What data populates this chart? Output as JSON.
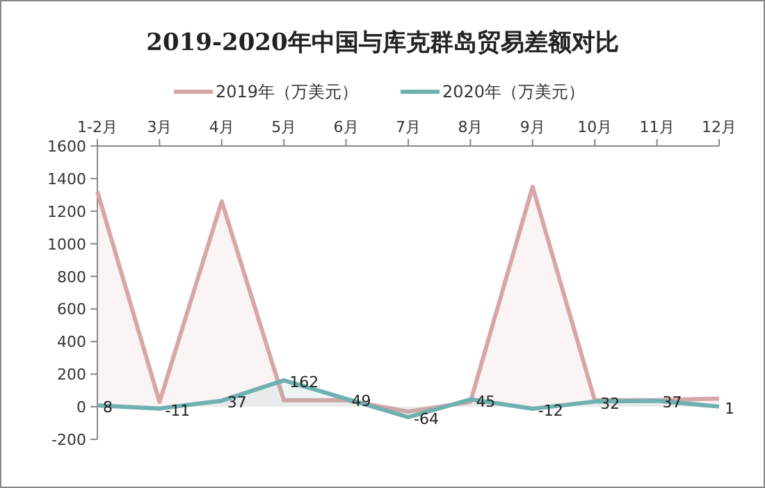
{
  "chart_data": {
    "type": "area",
    "title": "2019-2020年中国与库克群岛贸易差额对比",
    "categories": [
      "1-2月",
      "3月",
      "4月",
      "5月",
      "6月",
      "7月",
      "8月",
      "9月",
      "10月",
      "11月",
      "12月"
    ],
    "series": [
      {
        "name": "2019年（万美元）",
        "color": "#d9a6a6",
        "values": [
          1320,
          30,
          1260,
          40,
          40,
          -30,
          30,
          1350,
          40,
          40,
          50
        ]
      },
      {
        "name": "2020年（万美元）",
        "color": "#6fb0b0",
        "values": [
          8,
          -11,
          37,
          162,
          49,
          -64,
          45,
          -12,
          32,
          37,
          1
        ],
        "value_labels": [
          "8",
          "-11",
          "37",
          "162",
          "49",
          "-64",
          "45",
          "-12",
          "32",
          "37",
          "1"
        ]
      }
    ],
    "ylim": [
      -200,
      1600
    ],
    "yticks": [
      -200,
      0,
      200,
      400,
      600,
      800,
      1000,
      1200,
      1400,
      1600
    ],
    "grid": false,
    "legend": "top"
  }
}
